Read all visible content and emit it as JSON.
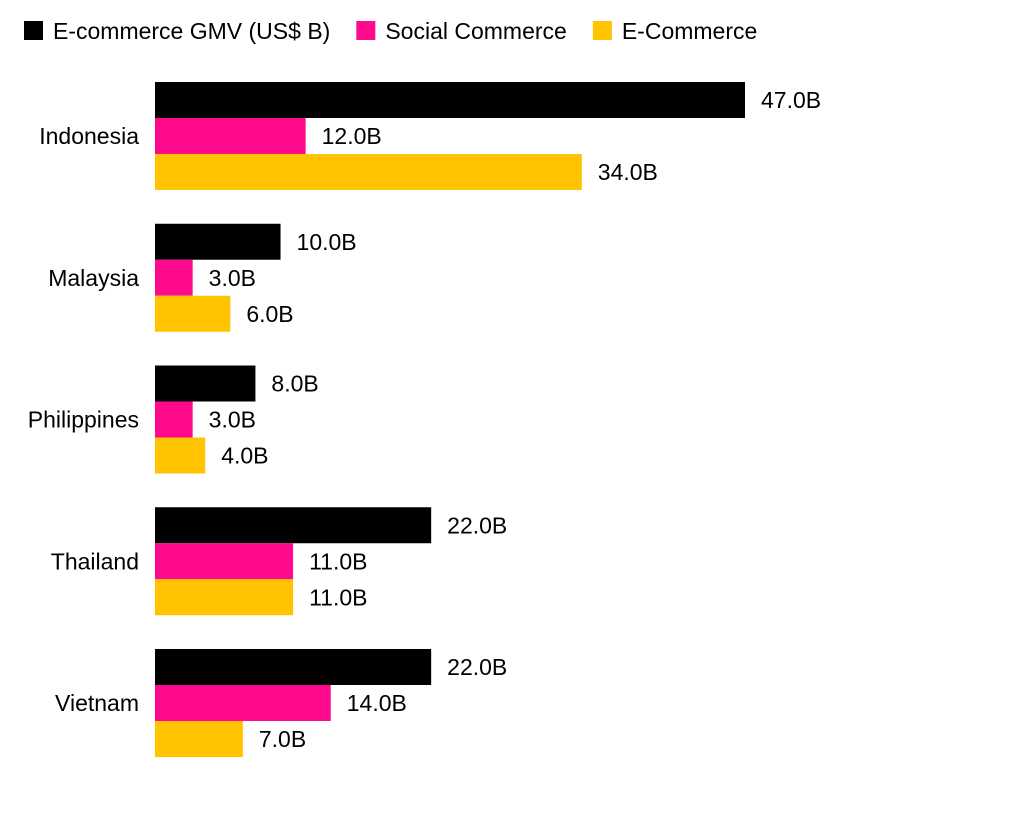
{
  "chart_data": {
    "type": "bar",
    "orientation": "horizontal",
    "categories": [
      "Indonesia",
      "Malaysia",
      "Philippines",
      "Thailand",
      "Vietnam"
    ],
    "series": [
      {
        "name": "E-commerce GMV (US$ B)",
        "color": "#000000",
        "values": [
          47,
          10,
          8,
          22,
          22
        ]
      },
      {
        "name": "Social Commerce",
        "color": "#ff0a8c",
        "values": [
          12,
          3,
          3,
          11,
          14
        ]
      },
      {
        "name": "E-Commerce",
        "color": "#ffc300",
        "values": [
          34,
          6,
          4,
          11,
          7
        ]
      }
    ],
    "value_suffix": "B",
    "data_labels": true,
    "grid": false,
    "legend_position": "top-left",
    "xlim": [
      0,
      47
    ]
  }
}
